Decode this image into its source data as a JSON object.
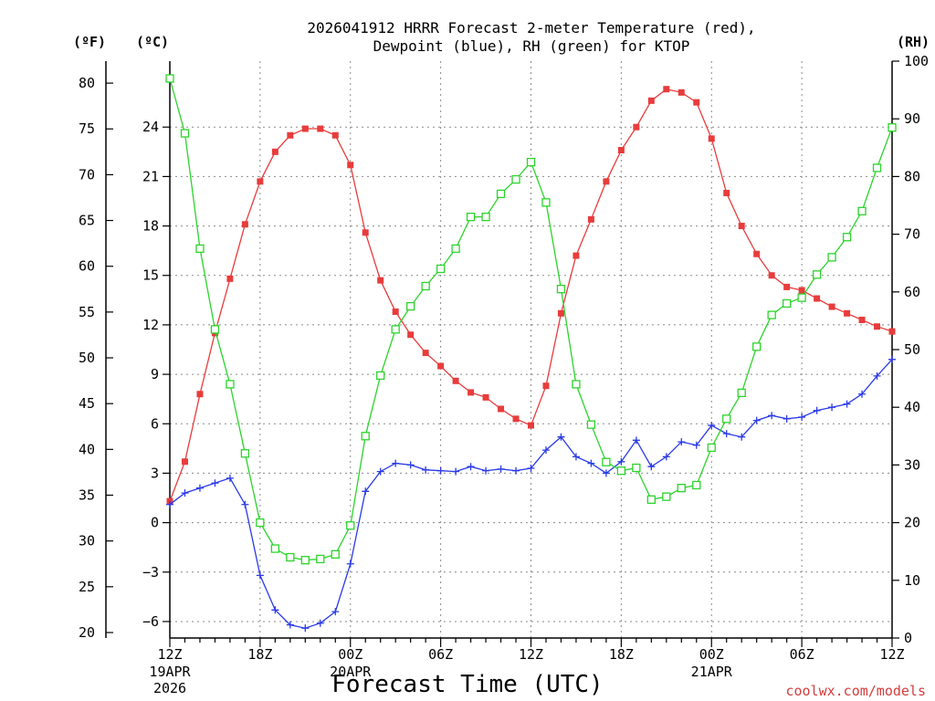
{
  "chart_data": {
    "type": "line",
    "title_line1": "2026041912 HRRR Forecast 2-meter Temperature (red),",
    "title_line2": "Dewpoint (blue), RH (green) for KTOP",
    "xlabel": "Forecast Time (UTC)",
    "credit": "coolwx.com/models",
    "unit_f": "(ºF)",
    "unit_c": "(ºC)",
    "unit_rh": "(RH)",
    "x_hours_range": [
      0,
      48
    ],
    "x_ticks": [
      {
        "hour": 0,
        "label": "12Z",
        "sub1": "19APR",
        "sub2": "2026"
      },
      {
        "hour": 6,
        "label": "18Z",
        "sub1": "",
        "sub2": ""
      },
      {
        "hour": 12,
        "label": "00Z",
        "sub1": "20APR",
        "sub2": ""
      },
      {
        "hour": 18,
        "label": "06Z",
        "sub1": "",
        "sub2": ""
      },
      {
        "hour": 24,
        "label": "12Z",
        "sub1": "",
        "sub2": ""
      },
      {
        "hour": 30,
        "label": "18Z",
        "sub1": "",
        "sub2": ""
      },
      {
        "hour": 36,
        "label": "00Z",
        "sub1": "21APR",
        "sub2": ""
      },
      {
        "hour": 42,
        "label": "06Z",
        "sub1": "",
        "sub2": ""
      },
      {
        "hour": 48,
        "label": "12Z",
        "sub1": "",
        "sub2": ""
      }
    ],
    "y_celsius_range": [
      -7,
      28
    ],
    "y_celsius_ticks": [
      -6,
      -3,
      0,
      3,
      6,
      9,
      12,
      15,
      18,
      21,
      24
    ],
    "y_celsius_labels": [
      "−6",
      "−3",
      "0",
      "3",
      "6",
      "9",
      "12",
      "15",
      "18",
      "21",
      "24"
    ],
    "y_fahrenheit_ticks": [
      20,
      25,
      30,
      35,
      40,
      45,
      50,
      55,
      60,
      65,
      70,
      75,
      80
    ],
    "y_rh_range": [
      0,
      100
    ],
    "y_rh_ticks": [
      0,
      10,
      20,
      30,
      40,
      50,
      60,
      70,
      80,
      90,
      100
    ],
    "grid": true,
    "series": [
      {
        "name": "Temperature",
        "color": "#e83c3c",
        "axis": "celsius",
        "marker": "filled-square",
        "values": [
          1.3,
          3.7,
          7.8,
          11.5,
          14.8,
          18.1,
          20.7,
          22.5,
          23.5,
          23.9,
          23.9,
          23.5,
          21.7,
          17.6,
          14.7,
          12.8,
          11.4,
          10.3,
          9.5,
          8.6,
          7.9,
          7.6,
          6.9,
          6.3,
          5.9,
          8.3,
          12.7,
          16.2,
          18.4,
          20.7,
          22.6,
          24.0,
          25.6,
          26.3,
          26.1,
          25.5,
          23.3,
          20.0,
          18.0,
          16.3,
          15.0,
          14.3,
          14.1,
          13.6,
          13.1,
          12.7,
          12.3,
          11.9,
          11.6
        ]
      },
      {
        "name": "Dewpoint",
        "color": "#2a3ae8",
        "axis": "celsius",
        "marker": "plus",
        "values": [
          1.1,
          1.8,
          2.1,
          2.4,
          2.7,
          1.1,
          -3.2,
          -5.3,
          -6.2,
          -6.4,
          -6.1,
          -5.4,
          -2.5,
          1.9,
          3.1,
          3.6,
          3.5,
          3.2,
          3.15,
          3.1,
          3.4,
          3.15,
          3.25,
          3.15,
          3.3,
          4.4,
          5.2,
          4.0,
          3.6,
          3.0,
          3.7,
          5.0,
          3.4,
          4.0,
          4.9,
          4.7,
          5.9,
          5.4,
          5.2,
          6.2,
          6.5,
          6.3,
          6.4,
          6.8,
          7.0,
          7.2,
          7.8,
          8.9,
          9.9
        ]
      },
      {
        "name": "RH",
        "color": "#2bd42b",
        "axis": "rh",
        "marker": "open-square",
        "values": [
          97,
          87.5,
          67.5,
          53.5,
          44,
          32,
          20,
          15.5,
          14,
          13.5,
          13.7,
          14.5,
          19.5,
          35,
          45.5,
          53.5,
          57.5,
          61,
          64,
          67.5,
          73,
          73,
          77,
          79.5,
          82.5,
          75.5,
          60.5,
          44,
          37,
          30.5,
          29,
          29.5,
          24,
          24.5,
          26,
          26.5,
          33,
          38,
          42.5,
          50.5,
          56,
          58,
          59,
          63,
          66,
          69.5,
          74,
          81.5,
          88.5
        ]
      }
    ]
  }
}
